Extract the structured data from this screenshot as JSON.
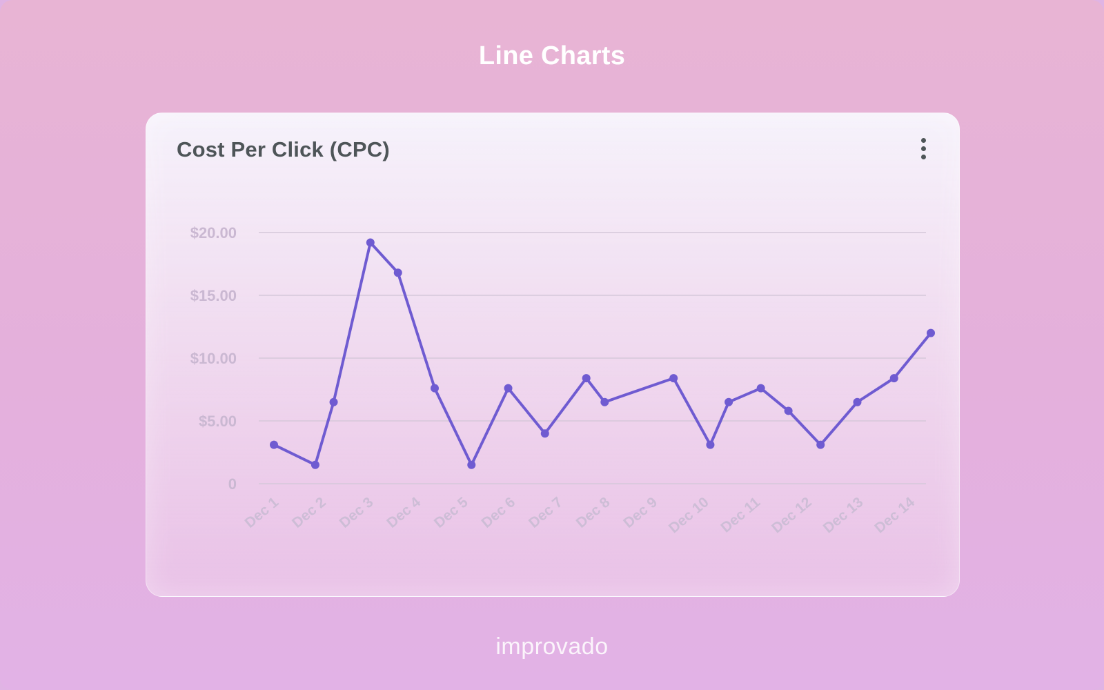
{
  "page": {
    "title": "Line Charts",
    "brand": "improvado"
  },
  "card": {
    "title": "Cost Per Click (CPC)",
    "menu_icon": "more-vertical-icon"
  },
  "colors": {
    "line": "#6f5bd1",
    "grid": "#d5c8da",
    "tick": "#cab8d2"
  },
  "chart_data": {
    "type": "line",
    "title": "Cost Per Click (CPC)",
    "xlabel": "",
    "ylabel": "",
    "ylim": [
      0,
      20
    ],
    "ytick_values": [
      0,
      5,
      10,
      15,
      20
    ],
    "ytick_labels": [
      "0",
      "$5.00",
      "$10.00",
      "$15.00",
      "$20.00"
    ],
    "categories": [
      "Dec 1",
      "Dec 2",
      "Dec 3",
      "Dec 4",
      "Dec 5",
      "Dec 6",
      "Dec 7",
      "Dec 8",
      "Dec 9",
      "Dec 10",
      "Dec 11",
      "Dec 12",
      "Dec 13",
      "Dec 14"
    ],
    "x_range": [
      1,
      14.5
    ],
    "series": [
      {
        "name": "CPC",
        "x": [
          1.0,
          1.9,
          2.3,
          3.1,
          3.7,
          4.5,
          5.3,
          6.1,
          6.9,
          7.8,
          8.2,
          9.7,
          10.5,
          10.9,
          11.6,
          12.2,
          12.9,
          13.7,
          14.5,
          15.3
        ],
        "values": [
          3.1,
          1.5,
          6.5,
          19.2,
          16.8,
          7.6,
          1.5,
          7.6,
          4.0,
          8.4,
          6.5,
          8.4,
          3.1,
          6.5,
          7.6,
          5.8,
          3.1,
          6.5,
          8.4,
          12.0
        ]
      }
    ]
  }
}
